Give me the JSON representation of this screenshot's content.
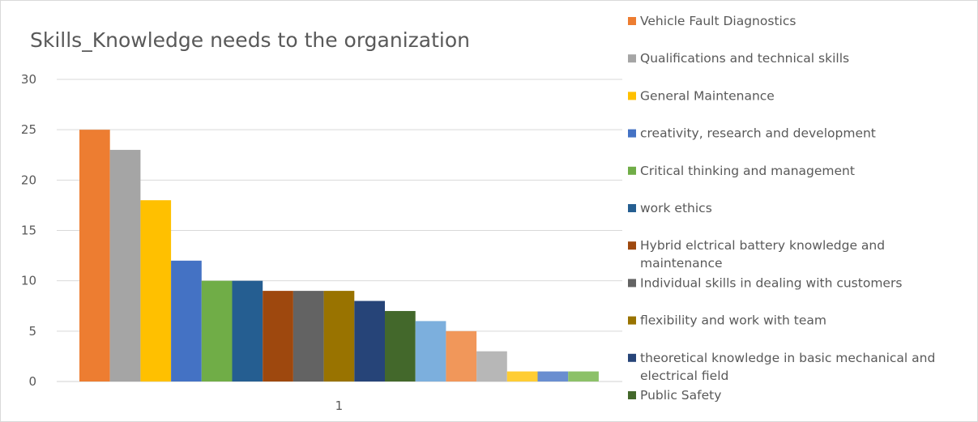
{
  "chart_data": {
    "type": "bar",
    "title": "Skills_Knowledge needs to the organization",
    "xlabel": "",
    "ylabel": "",
    "categories": [
      "1"
    ],
    "ylim": [
      0,
      30
    ],
    "yticks": [
      0,
      5,
      10,
      15,
      20,
      25,
      30
    ],
    "grid": true,
    "legend_position": "right",
    "series": [
      {
        "name": "Vehicle Fault Diagnostics",
        "values": [
          25
        ],
        "color": "#ED7D31"
      },
      {
        "name": "Qualifications and technical skills",
        "values": [
          23
        ],
        "color": "#A5A5A5"
      },
      {
        "name": "General Maintenance",
        "values": [
          18
        ],
        "color": "#FFC000"
      },
      {
        "name": "creativity, research and development",
        "values": [
          12
        ],
        "color": "#4472C4"
      },
      {
        "name": "Critical thinking and management",
        "values": [
          10
        ],
        "color": "#70AD47"
      },
      {
        "name": "work ethics",
        "values": [
          10
        ],
        "color": "#255E91"
      },
      {
        "name": "Hybrid elctrical battery knowledge and maintenance",
        "values": [
          9
        ],
        "color": "#9E480E"
      },
      {
        "name": "Individual skills in dealing with customers",
        "values": [
          9
        ],
        "color": "#636363"
      },
      {
        "name": "flexibility and work with team",
        "values": [
          9
        ],
        "color": "#997300"
      },
      {
        "name": "theoretical knowledge in basic mechanical and electrical field",
        "values": [
          8
        ],
        "color": "#264478"
      },
      {
        "name": "Public Safety",
        "values": [
          7
        ],
        "color": "#43682B"
      },
      {
        "values": [
          6
        ],
        "color": "#7CAFDD"
      },
      {
        "values": [
          5
        ],
        "color": "#F1975A"
      },
      {
        "values": [
          3
        ],
        "color": "#B7B7B7"
      },
      {
        "values": [
          1
        ],
        "color": "#FFCD33"
      },
      {
        "values": [
          1
        ],
        "color": "#698ED0"
      },
      {
        "values": [
          1
        ],
        "color": "#8CC168"
      }
    ]
  }
}
